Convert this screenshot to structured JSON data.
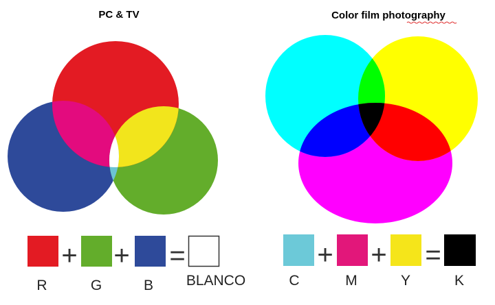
{
  "left_panel": {
    "title": "PC & TV",
    "equation": {
      "terms": [
        {
          "label": "R",
          "color": "#e31b23"
        },
        {
          "label": "G",
          "color": "#63ad2b"
        },
        {
          "label": "B",
          "color": "#2e4a9a"
        }
      ],
      "plus": "+",
      "equals": "=",
      "result": {
        "label": "BLANCO",
        "color": "#ffffff"
      }
    },
    "colors": {
      "red": "#e31b23",
      "green": "#63ad2b",
      "blue": "#2e4a9a",
      "red_blue": "#e30b7e",
      "red_green": "#f2e51c",
      "green_blue": "#6cc4d4",
      "all": "#ffffff"
    }
  },
  "right_panel": {
    "title": "Color film photography",
    "equation": {
      "terms": [
        {
          "label": "C",
          "color": "#6cc9d8"
        },
        {
          "label": "M",
          "color": "#e2177a"
        },
        {
          "label": "Y",
          "color": "#f5e51a"
        }
      ],
      "plus": "+",
      "equals": "=",
      "result": {
        "label": "K",
        "color": "#000000"
      }
    },
    "colors": {
      "cyan": "#00ffff",
      "yellow": "#ffff00",
      "magenta": "#ff00ff",
      "cyan_yellow": "#00ff00",
      "cyan_magenta": "#0000ff",
      "yellow_magenta": "#ff0000",
      "all": "#000000"
    }
  }
}
